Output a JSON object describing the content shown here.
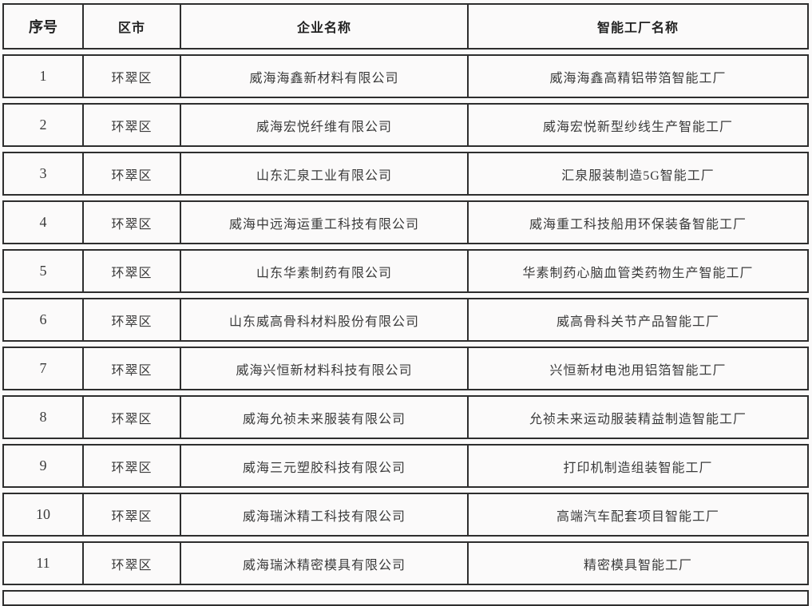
{
  "colors": {
    "border": "#2e2e2e",
    "text": "#3a3a3a",
    "header_text": "#222222",
    "background": "#fbfafa"
  },
  "table": {
    "columns": [
      "序号",
      "区市",
      "企业名称",
      "智能工厂名称"
    ],
    "rows": [
      {
        "no": "1",
        "district": "环翠区",
        "company": "威海海鑫新材料有限公司",
        "factory": "威海海鑫高精铝带箔智能工厂"
      },
      {
        "no": "2",
        "district": "环翠区",
        "company": "威海宏悦纤维有限公司",
        "factory": "威海宏悦新型纱线生产智能工厂"
      },
      {
        "no": "3",
        "district": "环翠区",
        "company": "山东汇泉工业有限公司",
        "factory": "汇泉服装制造5G智能工厂"
      },
      {
        "no": "4",
        "district": "环翠区",
        "company": "威海中远海运重工科技有限公司",
        "factory": "威海重工科技船用环保装备智能工厂"
      },
      {
        "no": "5",
        "district": "环翠区",
        "company": "山东华素制药有限公司",
        "factory": "华素制药心脑血管类药物生产智能工厂"
      },
      {
        "no": "6",
        "district": "环翠区",
        "company": "山东威高骨科材料股份有限公司",
        "factory": "威高骨科关节产品智能工厂"
      },
      {
        "no": "7",
        "district": "环翠区",
        "company": "威海兴恒新材料科技有限公司",
        "factory": "兴恒新材电池用铝箔智能工厂"
      },
      {
        "no": "8",
        "district": "环翠区",
        "company": "威海允祯未来服装有限公司",
        "factory": "允祯未来运动服装精益制造智能工厂"
      },
      {
        "no": "9",
        "district": "环翠区",
        "company": "威海三元塑胶科技有限公司",
        "factory": "打印机制造组装智能工厂"
      },
      {
        "no": "10",
        "district": "环翠区",
        "company": "威海瑞沐精工科技有限公司",
        "factory": "高端汽车配套项目智能工厂"
      },
      {
        "no": "11",
        "district": "环翠区",
        "company": "威海瑞沐精密模具有限公司",
        "factory": "精密模具智能工厂"
      }
    ]
  }
}
